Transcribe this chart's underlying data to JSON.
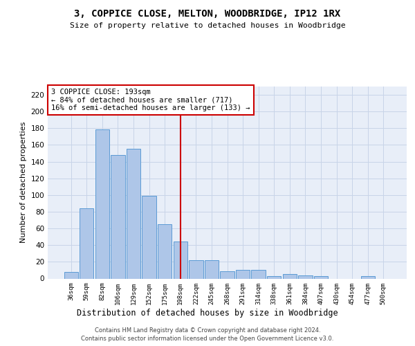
{
  "title": "3, COPPICE CLOSE, MELTON, WOODBRIDGE, IP12 1RX",
  "subtitle": "Size of property relative to detached houses in Woodbridge",
  "xlabel": "Distribution of detached houses by size in Woodbridge",
  "ylabel": "Number of detached properties",
  "bar_labels": [
    "36sqm",
    "59sqm",
    "82sqm",
    "106sqm",
    "129sqm",
    "152sqm",
    "175sqm",
    "198sqm",
    "222sqm",
    "245sqm",
    "268sqm",
    "291sqm",
    "314sqm",
    "338sqm",
    "361sqm",
    "384sqm",
    "407sqm",
    "430sqm",
    "454sqm",
    "477sqm",
    "500sqm"
  ],
  "bar_values": [
    8,
    84,
    179,
    148,
    155,
    99,
    65,
    44,
    22,
    22,
    9,
    10,
    10,
    3,
    5,
    4,
    3,
    0,
    0,
    3,
    0
  ],
  "bar_color": "#aec6e8",
  "bar_edge_color": "#5b9bd5",
  "grid_color": "#c8d4e8",
  "background_color": "#e8eef8",
  "vline_index": 7,
  "annotation_title": "3 COPPICE CLOSE: 193sqm",
  "annotation_line1": "← 84% of detached houses are smaller (717)",
  "annotation_line2": "16% of semi-detached houses are larger (133) →",
  "annotation_box_color": "#ffffff",
  "annotation_box_edge": "#cc0000",
  "vline_color": "#cc0000",
  "footer_line1": "Contains HM Land Registry data © Crown copyright and database right 2024.",
  "footer_line2": "Contains public sector information licensed under the Open Government Licence v3.0.",
  "ylim": [
    0,
    230
  ],
  "yticks": [
    0,
    20,
    40,
    60,
    80,
    100,
    120,
    140,
    160,
    180,
    200,
    220
  ]
}
